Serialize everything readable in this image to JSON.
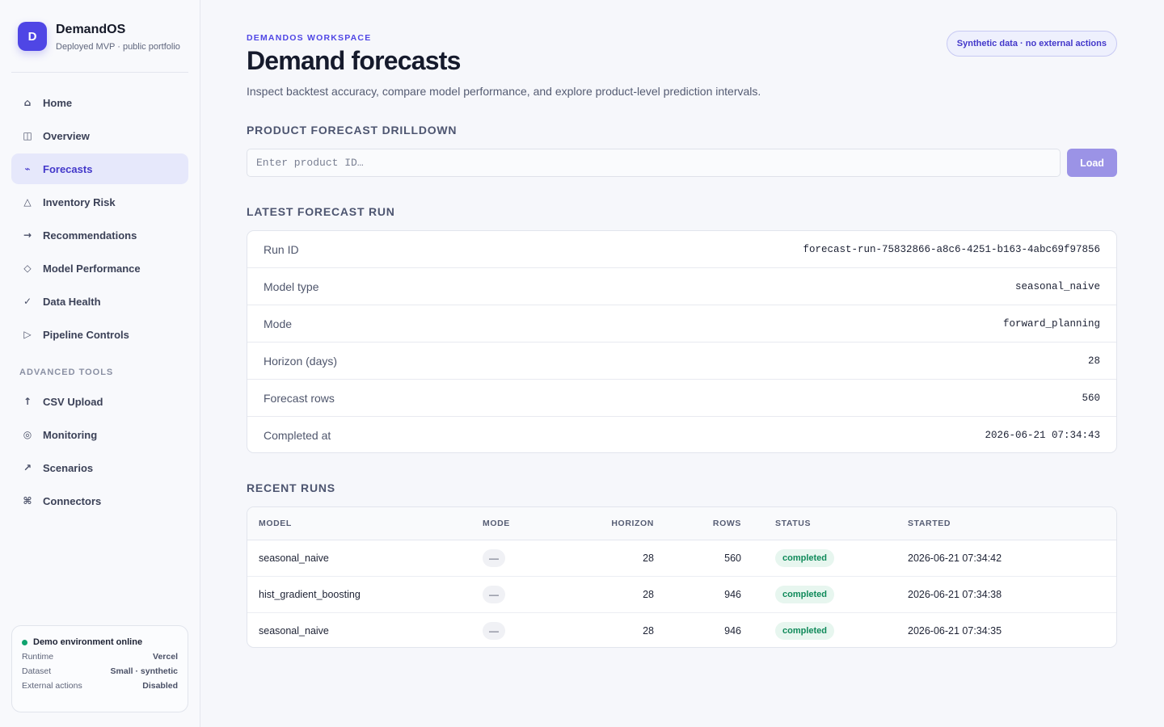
{
  "brand": {
    "logo_letter": "D",
    "name": "DemandOS",
    "subtitle": "Deployed MVP · public portfolio"
  },
  "sidebar": {
    "items": [
      {
        "label": "Home",
        "icon": "⌂",
        "icon_name": "home-icon"
      },
      {
        "label": "Overview",
        "icon": "◫",
        "icon_name": "grid-icon"
      },
      {
        "label": "Forecasts",
        "icon": "⌁",
        "icon_name": "trend-icon",
        "active": true
      },
      {
        "label": "Inventory Risk",
        "icon": "△",
        "icon_name": "warning-triangle-icon"
      },
      {
        "label": "Recommendations",
        "icon": "→",
        "icon_name": "arrow-right-icon"
      },
      {
        "label": "Model Performance",
        "icon": "◇",
        "icon_name": "diamond-icon"
      },
      {
        "label": "Data Health",
        "icon": "✓",
        "icon_name": "check-icon"
      },
      {
        "label": "Pipeline Controls",
        "icon": "▷",
        "icon_name": "play-icon"
      }
    ],
    "advanced_label": "ADVANCED TOOLS",
    "advanced_items": [
      {
        "label": "CSV Upload",
        "icon": "↑",
        "icon_name": "upload-icon"
      },
      {
        "label": "Monitoring",
        "icon": "◎",
        "icon_name": "target-icon"
      },
      {
        "label": "Scenarios",
        "icon": "↗",
        "icon_name": "arrow-up-right-icon"
      },
      {
        "label": "Connectors",
        "icon": "⌘",
        "icon_name": "command-icon"
      }
    ],
    "environment": {
      "status": "Demo environment online",
      "status_color": "#10a36f",
      "rows": [
        {
          "label": "Runtime",
          "value": "Vercel"
        },
        {
          "label": "Dataset",
          "value": "Small · synthetic"
        },
        {
          "label": "External actions",
          "value": "Disabled"
        }
      ]
    }
  },
  "header": {
    "eyebrow": "DEMANDOS WORKSPACE",
    "title": "Demand forecasts",
    "subtitle": "Inspect backtest accuracy, compare model performance, and explore product-level prediction intervals.",
    "badge": "Synthetic data · no external actions"
  },
  "drilldown": {
    "title": "PRODUCT FORECAST DRILLDOWN",
    "placeholder": "Enter product ID…",
    "button": "Load"
  },
  "latest_run": {
    "title": "LATEST FORECAST RUN",
    "rows": [
      {
        "label": "Run ID",
        "value": "forecast-run-75832866-a8c6-4251-b163-4abc69f97856"
      },
      {
        "label": "Model type",
        "value": "seasonal_naive"
      },
      {
        "label": "Mode",
        "value": "forward_planning"
      },
      {
        "label": "Horizon (days)",
        "value": "28"
      },
      {
        "label": "Forecast rows",
        "value": "560"
      },
      {
        "label": "Completed at",
        "value": "2026-06-21 07:34:43"
      }
    ]
  },
  "recent_runs": {
    "title": "RECENT RUNS",
    "columns": {
      "model": "MODEL",
      "mode": "MODE",
      "horizon": "HORIZON",
      "rows": "ROWS",
      "status": "STATUS",
      "started": "STARTED"
    },
    "rows": [
      {
        "model": "seasonal_naive",
        "mode": "—",
        "horizon": "28",
        "rows": "560",
        "status": "completed",
        "started": "2026-06-21 07:34:42"
      },
      {
        "model": "hist_gradient_boosting",
        "mode": "—",
        "horizon": "28",
        "rows": "946",
        "status": "completed",
        "started": "2026-06-21 07:34:38"
      },
      {
        "model": "seasonal_naive",
        "mode": "—",
        "horizon": "28",
        "rows": "946",
        "status": "completed",
        "started": "2026-06-21 07:34:35"
      }
    ]
  },
  "colors": {
    "accent": "#4f46e5",
    "active_nav_bg": "#e6e8fb",
    "status_completed_bg": "#e7f6ef",
    "status_completed_text": "#0f8a5a"
  }
}
